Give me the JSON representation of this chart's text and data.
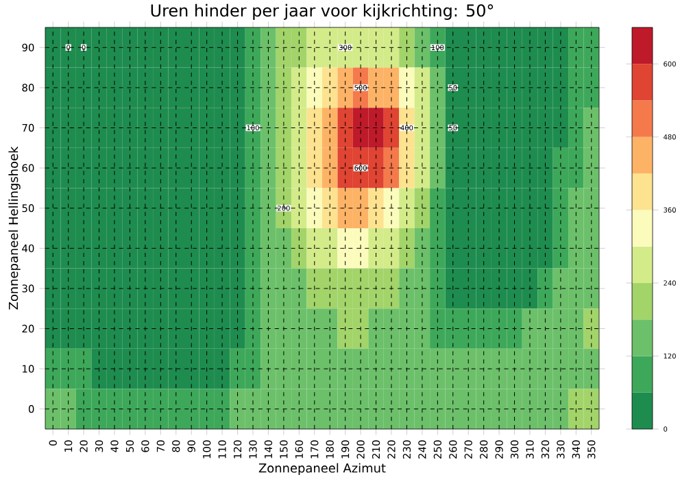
{
  "chart_data": {
    "type": "heatmap",
    "title": "Uren hinder per jaar voor kijkrichting: 50°",
    "xlabel": "Zonnepaneel Azimut",
    "ylabel": "Zonnepaneel Hellingshoek",
    "categories": [
      "0",
      "10",
      "20",
      "30",
      "40",
      "50",
      "60",
      "70",
      "80",
      "90",
      "100",
      "110",
      "120",
      "130",
      "140",
      "150",
      "160",
      "170",
      "180",
      "190",
      "200",
      "210",
      "220",
      "230",
      "240",
      "250",
      "260",
      "270",
      "280",
      "290",
      "300",
      "310",
      "320",
      "330",
      "340",
      "350"
    ],
    "y_categories": [
      "90",
      "80",
      "70",
      "60",
      "50",
      "40",
      "30",
      "20",
      "10",
      "0"
    ],
    "cells": [
      [
        40,
        0,
        0,
        0,
        0,
        0,
        0,
        0,
        0,
        0,
        0,
        0,
        40,
        90,
        150,
        190,
        220,
        250,
        270,
        290,
        290,
        280,
        260,
        220,
        170,
        100,
        40,
        0,
        0,
        0,
        0,
        0,
        0,
        20,
        60,
        80
      ],
      [
        40,
        0,
        0,
        0,
        0,
        0,
        0,
        0,
        0,
        0,
        0,
        0,
        40,
        90,
        160,
        210,
        260,
        320,
        380,
        440,
        480,
        470,
        420,
        340,
        240,
        130,
        50,
        0,
        0,
        0,
        0,
        0,
        0,
        30,
        70,
        110
      ],
      [
        40,
        0,
        0,
        0,
        0,
        0,
        0,
        0,
        0,
        0,
        0,
        0,
        40,
        100,
        170,
        230,
        290,
        370,
        460,
        560,
        630,
        640,
        540,
        400,
        260,
        140,
        50,
        0,
        0,
        0,
        0,
        0,
        0,
        40,
        90,
        130
      ],
      [
        40,
        0,
        0,
        0,
        0,
        0,
        0,
        0,
        0,
        0,
        0,
        0,
        40,
        100,
        160,
        220,
        280,
        360,
        450,
        540,
        580,
        560,
        480,
        360,
        240,
        130,
        50,
        0,
        0,
        0,
        0,
        0,
        20,
        60,
        110,
        150
      ],
      [
        40,
        0,
        0,
        0,
        0,
        0,
        0,
        0,
        0,
        0,
        0,
        0,
        40,
        100,
        150,
        200,
        250,
        310,
        370,
        420,
        430,
        410,
        350,
        270,
        190,
        110,
        40,
        0,
        0,
        0,
        0,
        0,
        30,
        80,
        130,
        160
      ],
      [
        40,
        0,
        0,
        0,
        0,
        0,
        0,
        0,
        0,
        0,
        0,
        0,
        40,
        100,
        140,
        170,
        200,
        240,
        280,
        310,
        310,
        290,
        250,
        200,
        150,
        90,
        40,
        10,
        0,
        0,
        0,
        0,
        40,
        100,
        140,
        170
      ],
      [
        40,
        0,
        0,
        0,
        0,
        0,
        0,
        0,
        0,
        0,
        0,
        20,
        50,
        100,
        130,
        150,
        170,
        190,
        210,
        220,
        220,
        210,
        190,
        160,
        120,
        80,
        50,
        40,
        40,
        40,
        40,
        50,
        80,
        120,
        150,
        170
      ],
      [
        40,
        20,
        20,
        0,
        0,
        0,
        0,
        0,
        0,
        0,
        0,
        0,
        40,
        100,
        130,
        150,
        160,
        170,
        175,
        180,
        180,
        175,
        165,
        150,
        130,
        110,
        100,
        100,
        100,
        100,
        110,
        120,
        140,
        160,
        170,
        180
      ],
      [
        80,
        70,
        60,
        55,
        50,
        50,
        50,
        50,
        50,
        50,
        50,
        55,
        80,
        110,
        130,
        145,
        155,
        160,
        165,
        165,
        165,
        160,
        160,
        155,
        150,
        145,
        140,
        140,
        140,
        140,
        145,
        150,
        160,
        165,
        170,
        175
      ],
      [
        130,
        120,
        115,
        115,
        115,
        115,
        115,
        115,
        115,
        115,
        115,
        115,
        130,
        145,
        155,
        160,
        165,
        170,
        170,
        170,
        170,
        170,
        170,
        170,
        165,
        165,
        165,
        165,
        165,
        165,
        165,
        165,
        170,
        175,
        180,
        180
      ]
    ],
    "clim": [
      0,
      660
    ],
    "cticks": [
      0,
      120,
      240,
      360,
      480,
      600
    ],
    "grid": true,
    "annotations": [
      "0",
      "50",
      "100",
      "400",
      "600",
      "500",
      "300",
      "200",
      "50",
      "0",
      "100"
    ]
  }
}
